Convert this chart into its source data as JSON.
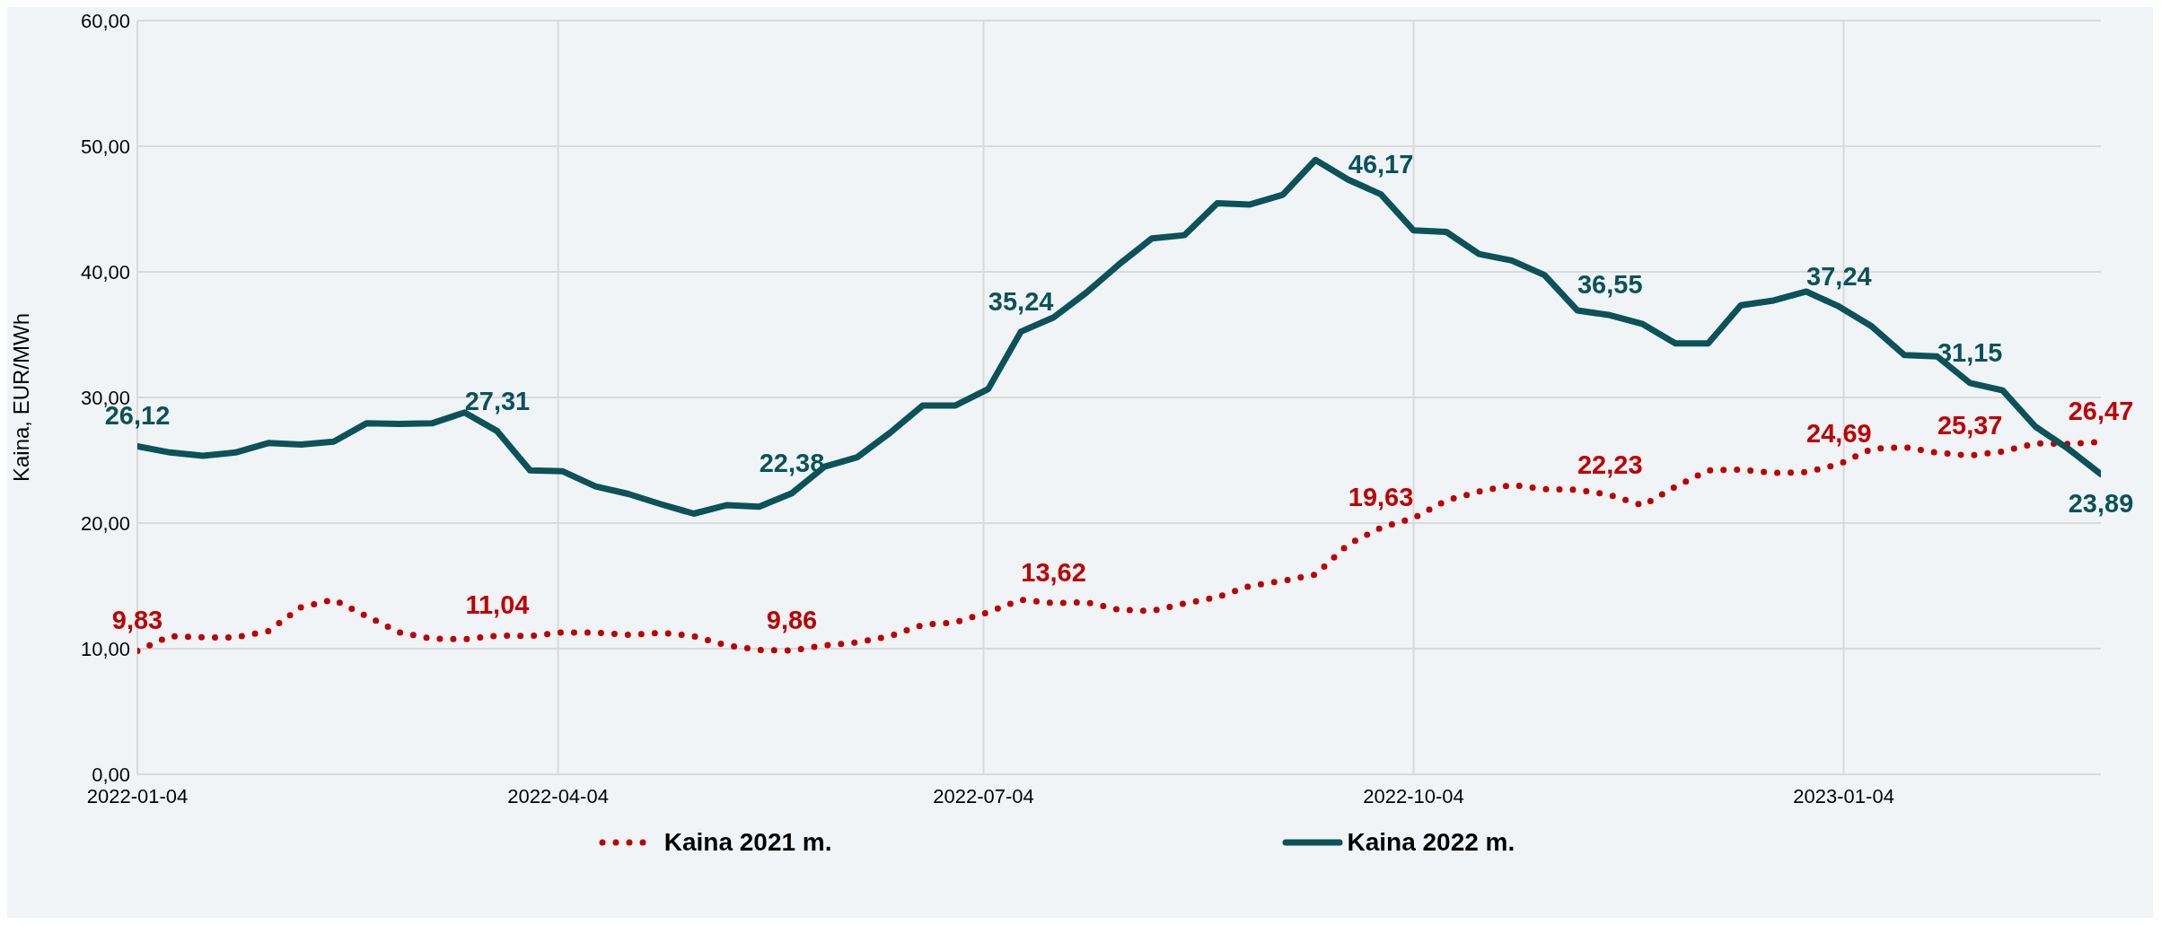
{
  "chart_data": {
    "type": "line",
    "ylabel": "Kaina, EUR/MWh",
    "x": [
      "2022-01-04",
      "2022-01-11",
      "2022-01-18",
      "2022-01-25",
      "2022-02-01",
      "2022-02-08",
      "2022-02-15",
      "2022-02-22",
      "2022-03-01",
      "2022-03-08",
      "2022-03-15",
      "2022-03-22",
      "2022-03-29",
      "2022-04-05",
      "2022-04-12",
      "2022-04-19",
      "2022-04-26",
      "2022-05-03",
      "2022-05-10",
      "2022-05-17",
      "2022-05-24",
      "2022-05-31",
      "2022-06-07",
      "2022-06-14",
      "2022-06-21",
      "2022-06-28",
      "2022-07-05",
      "2022-07-12",
      "2022-07-19",
      "2022-07-26",
      "2022-08-02",
      "2022-08-09",
      "2022-08-16",
      "2022-08-23",
      "2022-08-30",
      "2022-09-06",
      "2022-09-13",
      "2022-09-20",
      "2022-09-27",
      "2022-10-04",
      "2022-10-11",
      "2022-10-18",
      "2022-10-25",
      "2022-11-01",
      "2022-11-08",
      "2022-11-15",
      "2022-11-22",
      "2022-11-29",
      "2022-12-06",
      "2022-12-13",
      "2022-12-20",
      "2022-12-27",
      "2023-01-03",
      "2023-01-10",
      "2023-01-17",
      "2023-01-24",
      "2023-01-31",
      "2023-02-07",
      "2023-02-14",
      "2023-02-21",
      "2023-02-28"
    ],
    "series": [
      {
        "name": "Kaina 2021 m.",
        "color": "#c00000",
        "line_style": "dotted",
        "values": [
          9.83,
          11.0,
          10.9,
          10.9,
          11.4,
          13.3,
          13.9,
          12.6,
          11.3,
          10.8,
          10.75,
          11.04,
          11.0,
          11.3,
          11.27,
          11.1,
          11.27,
          11.0,
          10.26,
          9.9,
          9.86,
          10.26,
          10.5,
          11.0,
          11.9,
          12.1,
          12.9,
          13.9,
          13.62,
          13.7,
          13.1,
          13.0,
          13.6,
          14.1,
          15.0,
          15.4,
          15.9,
          18.3,
          19.63,
          20.4,
          21.8,
          22.5,
          23.05,
          22.7,
          22.66,
          22.23,
          21.4,
          22.9,
          24.2,
          24.25,
          24.0,
          24.05,
          24.69,
          25.9,
          26.05,
          25.6,
          25.37,
          25.7,
          26.35,
          26.3,
          26.47
        ],
        "value_labels": [
          "9,83",
          null,
          null,
          null,
          null,
          null,
          null,
          null,
          null,
          null,
          null,
          "11,04",
          null,
          null,
          null,
          null,
          null,
          null,
          null,
          null,
          "9,86",
          null,
          null,
          null,
          null,
          null,
          null,
          null,
          "13,62",
          null,
          null,
          null,
          null,
          null,
          null,
          null,
          null,
          null,
          "19,63",
          null,
          null,
          null,
          null,
          null,
          null,
          "22,23",
          null,
          null,
          null,
          null,
          null,
          null,
          "24,69",
          null,
          null,
          null,
          "25,37",
          null,
          null,
          null,
          "26,47"
        ]
      },
      {
        "name": "Kaina 2022 m.",
        "color": "#0b5259",
        "line_style": "solid",
        "values": [
          26.12,
          25.62,
          25.36,
          25.62,
          26.37,
          26.25,
          26.48,
          27.94,
          27.9,
          27.94,
          28.8,
          27.31,
          24.19,
          24.12,
          22.92,
          22.32,
          21.5,
          20.75,
          21.42,
          21.31,
          22.38,
          24.49,
          25.24,
          27.19,
          29.36,
          29.36,
          30.67,
          35.24,
          36.37,
          38.35,
          40.6,
          42.66,
          42.92,
          45.47,
          45.36,
          46.14,
          48.91,
          47.34,
          46.17,
          43.3,
          43.18,
          41.42,
          40.9,
          39.74,
          36.93,
          36.55,
          35.84,
          34.31,
          34.31,
          37.34,
          37.72,
          38.43,
          37.24,
          35.66,
          33.37,
          33.26,
          31.15,
          30.56,
          27.68,
          25.92,
          23.89
        ],
        "value_labels": [
          "26,12",
          null,
          null,
          null,
          null,
          null,
          null,
          null,
          null,
          null,
          null,
          "27,31",
          null,
          null,
          null,
          null,
          null,
          null,
          null,
          null,
          "22,38",
          null,
          null,
          null,
          null,
          null,
          null,
          "35,24",
          null,
          null,
          null,
          null,
          null,
          null,
          null,
          null,
          null,
          null,
          "46,17",
          null,
          null,
          null,
          null,
          null,
          null,
          "36,55",
          null,
          null,
          null,
          null,
          null,
          null,
          "37,24",
          null,
          null,
          null,
          "31,15",
          null,
          null,
          null,
          "23,89"
        ]
      }
    ],
    "xlim": [
      "2022-01-04",
      "2023-02-28"
    ],
    "xticks": [
      "2022-01-04",
      "2022-04-04",
      "2022-07-04",
      "2022-10-04",
      "2023-01-04"
    ],
    "ylim": [
      0,
      60
    ],
    "yticks": [
      {
        "value": 0,
        "label": "0,00"
      },
      {
        "value": 10,
        "label": "10,00"
      },
      {
        "value": 20,
        "label": "20,00"
      },
      {
        "value": 30,
        "label": "30,00"
      },
      {
        "value": 40,
        "label": "40,00"
      },
      {
        "value": 50,
        "label": "50,00"
      },
      {
        "value": 60,
        "label": "60,00"
      }
    ],
    "grid": true,
    "legend": "bottom"
  }
}
